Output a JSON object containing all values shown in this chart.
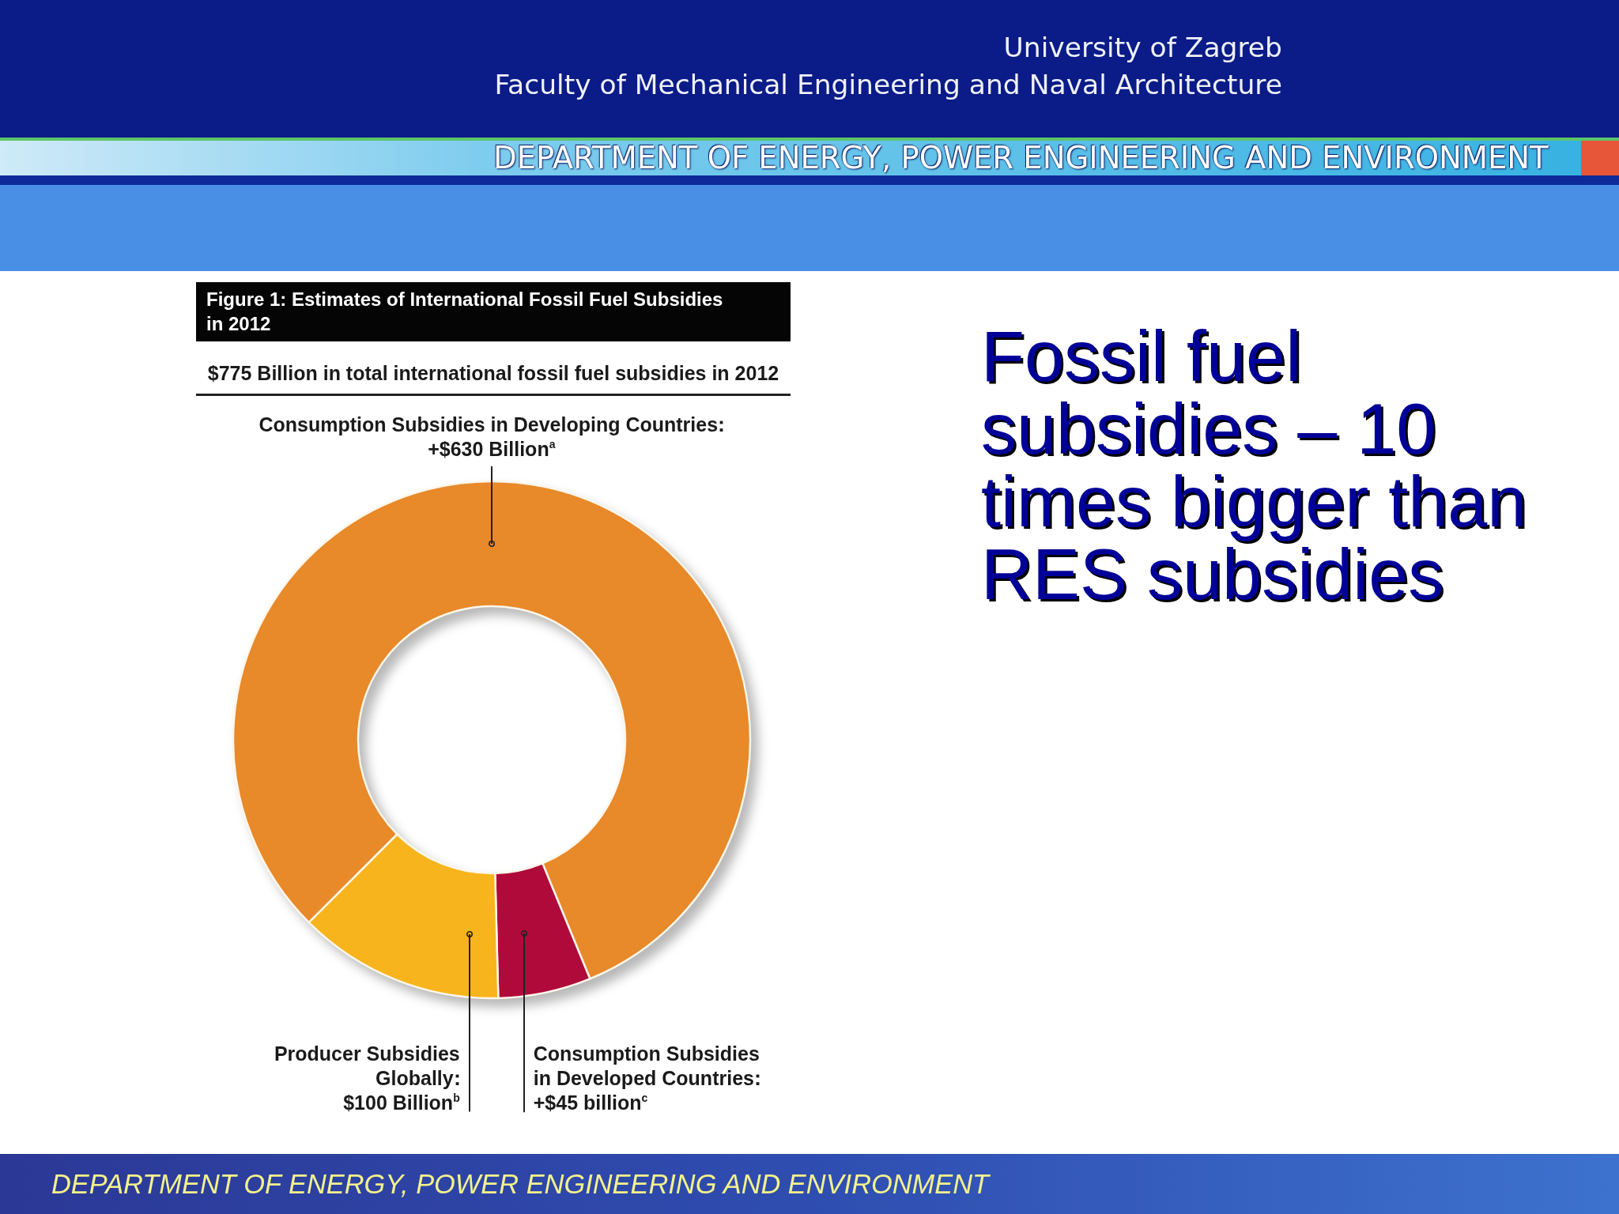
{
  "chart_data": {
    "type": "donut",
    "title": "Figure 1: Estimates of International Fossil Fuel Subsidies in 2012",
    "subtitle": "$775 Billion in total international fossil fuel subsidies in 2012",
    "categories": [
      "Consumption Subsidies in Developing Countries",
      "Consumption Subsidies in Developed Countries",
      "Producer Subsidies Globally"
    ],
    "values": [
      630,
      45,
      100
    ],
    "value_labels": [
      "+$630 Billion$^{a}$",
      "+$45 billion$^{c}$",
      "$100 Billion$^{b}$"
    ],
    "colors": [
      "#e8892a",
      "#b00a3b",
      "#f8b41c"
    ],
    "annotations": [
      "Fossil fuel subsidies – 10 times bigger than RES subsidies",
      "University of Zagreb",
      "Faculty of Mechanical Engineering and Naval Architecture",
      "DEPARTMENT OF ENERGY, POWER ENGINEERING AND ENVIRONMENT",
      "DEPARTMENT OF ENERGY, POWER ENGINEERING AND ENVIRONMENT"
    ]
  }
}
